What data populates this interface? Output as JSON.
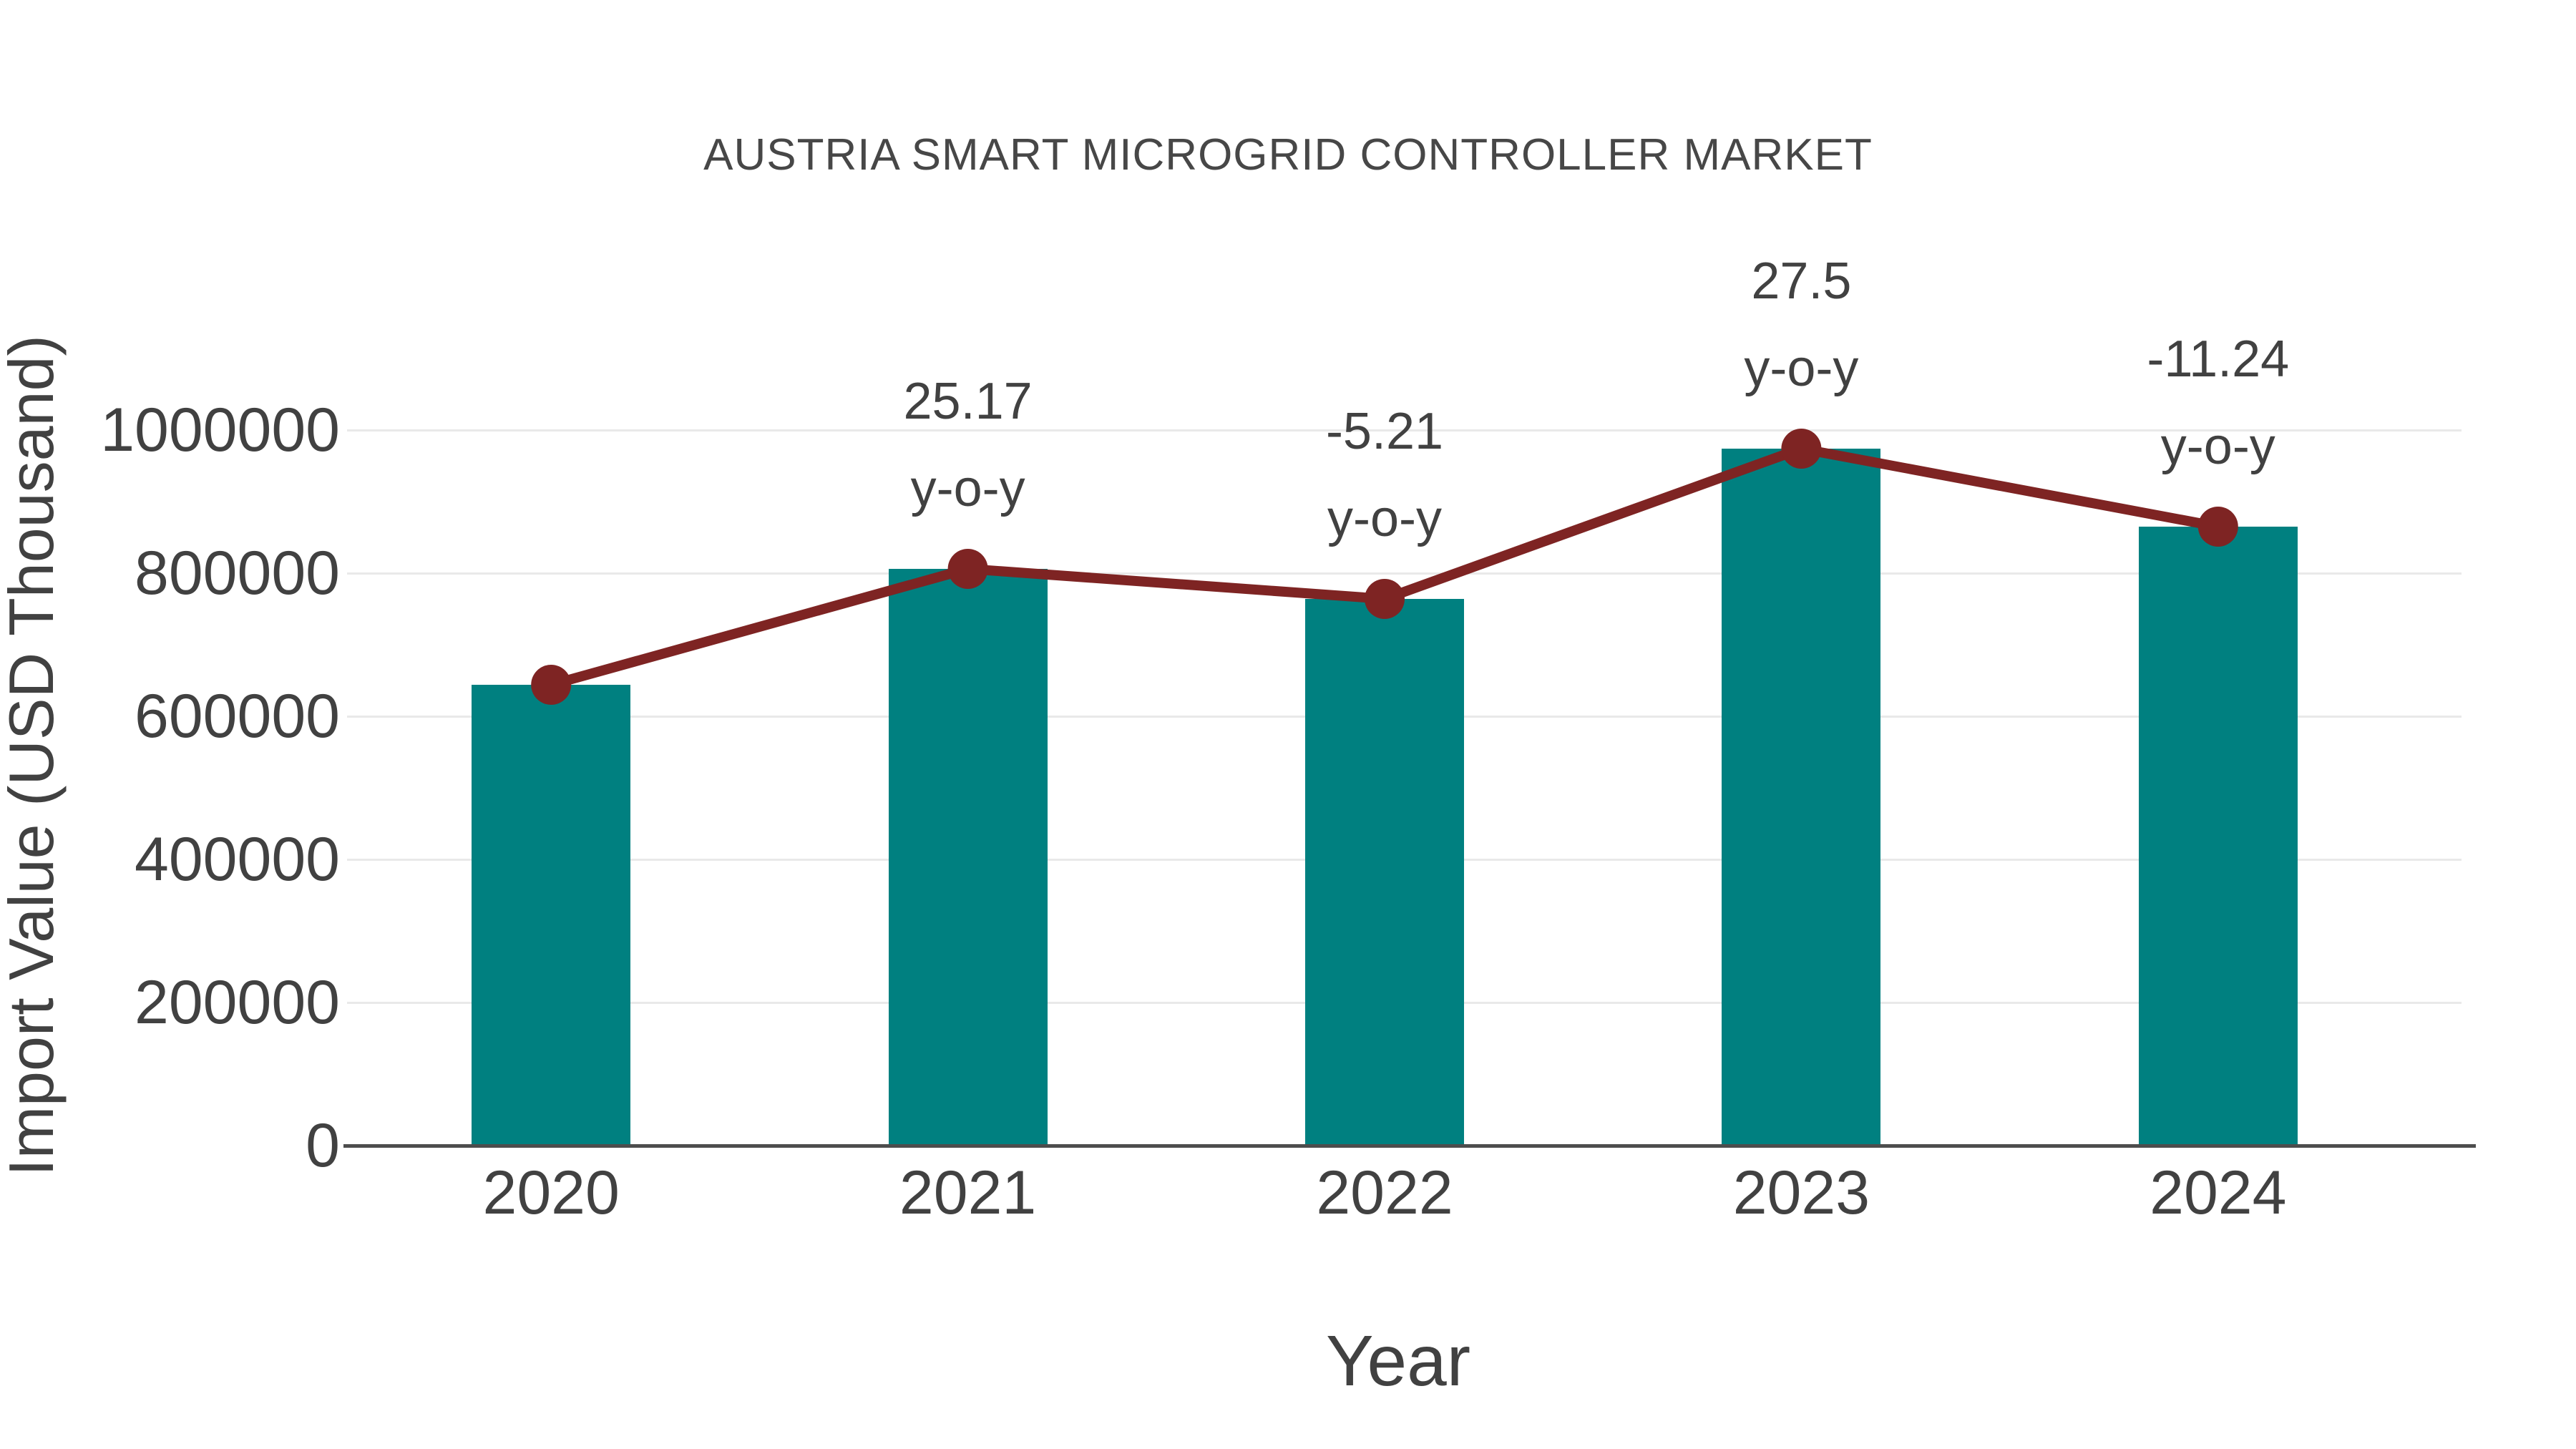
{
  "chart_data": {
    "type": "bar",
    "title": "AUSTRIA SMART MICROGRID CONTROLLER MARKET",
    "xlabel": "Year",
    "ylabel": "Import Value (USD Thousand)",
    "categories": [
      "2020",
      "2021",
      "2022",
      "2023",
      "2024"
    ],
    "series": [
      {
        "name": "Import Value (USD Thousand)",
        "type": "bar",
        "values": [
          644000,
          806000,
          764000,
          974000,
          865000
        ]
      },
      {
        "name": "y-o-y growth",
        "type": "line",
        "values": [
          644000,
          806000,
          764000,
          974000,
          865000
        ]
      }
    ],
    "annotations": [
      {
        "category": "2021",
        "lines": [
          "25.17",
          "y-o-y"
        ]
      },
      {
        "category": "2022",
        "lines": [
          "-5.21",
          "y-o-y"
        ]
      },
      {
        "category": "2023",
        "lines": [
          "27.5",
          "y-o-y"
        ]
      },
      {
        "category": "2024",
        "lines": [
          "-11.24",
          "y-o-y"
        ]
      }
    ],
    "yticks": [
      0,
      200000,
      400000,
      600000,
      800000,
      1000000
    ],
    "ylim": [
      0,
      1250000
    ],
    "grid": true,
    "legend": "none",
    "colors": {
      "bar": "#008080",
      "line": "#7E2423",
      "marker": "#7E2423",
      "text": "#414141",
      "title_text": "#474747",
      "grid": "#e9e9e9",
      "axis": "#4d4d4d",
      "background": "#ffffff"
    }
  }
}
